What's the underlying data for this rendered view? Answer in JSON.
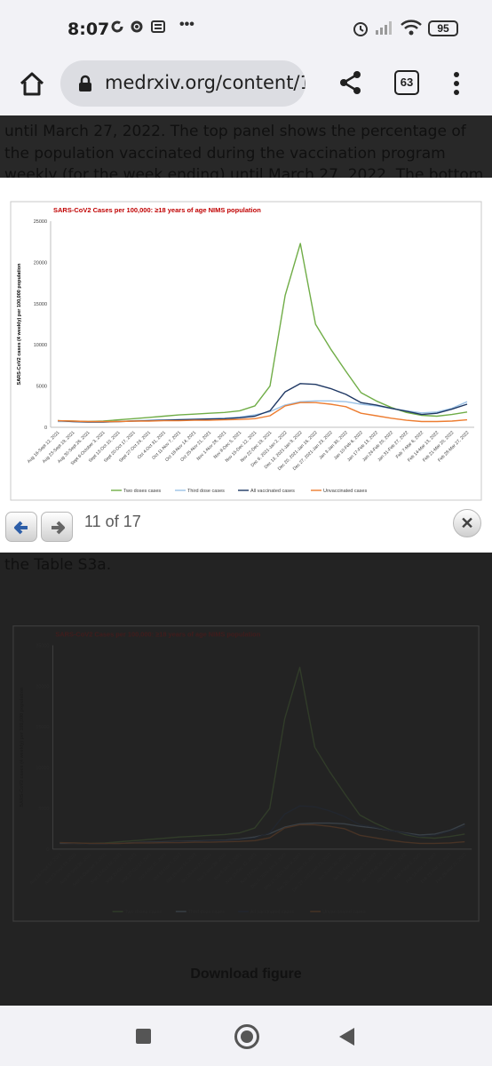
{
  "status": {
    "time": "8:07",
    "notif_icons": [
      "sync-icon",
      "gear-icon",
      "news-icon"
    ],
    "more": "•••",
    "battery": "95"
  },
  "browser": {
    "url": "medrxiv.org/content/1",
    "tab_count": "63"
  },
  "page": {
    "paragraph": "until March 27, 2022. The top panel shows the percentage of the population vaccinated during the vaccination program weekly (for the week ending) until March 27, 2022. The bottom panel shows",
    "table_ref": "the Table S3a.",
    "download_label": "Download figure"
  },
  "viewer": {
    "counter": "11 of 17"
  },
  "chart_data": {
    "type": "line",
    "title": "SARS-CoV2 Cases per 100,000: ≥18 years of age NIMS population",
    "ylabel": "SARS-CoV2 cases (4 weekly) per 100,000 population",
    "xlabel": "",
    "ylim": [
      0,
      25000
    ],
    "yticks": [
      "0",
      "5000",
      "10000",
      "15000",
      "20000",
      "25000"
    ],
    "grid": false,
    "legend_position": "bottom",
    "categories": [
      "Aug 16-Sept 12, 2021",
      "Aug 23-Sept 19, 2021",
      "Aug 30-Sept 26, 2021",
      "Sept 6-October 3, 2021",
      "Sept 13-Oct 10, 2021",
      "Sept 20-Oct 17, 2021",
      "Sept 27-Oct 24, 2021",
      "Oct 4-Oct 31, 2021",
      "Oct 11-Nov 7, 2021",
      "Oct 18-Nov 14, 2021",
      "Oct 25-Nov 21, 2021",
      "Nov 1-Nov 28, 2021",
      "Nov 8-Dec 5, 2021",
      "Nov 15-Dec 12, 2021",
      "Nov 22-Dec 19, 2021",
      "Dec 6, 2021-Jan 2, 2022",
      "Dec 13, 2021-Jan 9, 2022",
      "Dec 20, 2021-Jan 16, 2022",
      "Dec 27, 2021-Jan 23, 2022",
      "Jan 3-Jan 30, 2022",
      "Jan 10-Feb 6, 2022",
      "Jan 17-Feb 13, 2022",
      "Jan 24-Feb 20, 2022",
      "Jan 31-Feb 27, 2022",
      "Feb 7-Mar 6, 2022",
      "Feb 14-Mar 13, 2022",
      "Feb 21-Mar 20, 2022",
      "Feb 28-Mar 27, 2022"
    ],
    "series": [
      {
        "name": "Two doses cases",
        "color": "#70ad47",
        "values": [
          800,
          750,
          700,
          750,
          900,
          1050,
          1200,
          1350,
          1500,
          1600,
          1700,
          1800,
          2000,
          2600,
          5000,
          16000,
          22300,
          12500,
          9500,
          6800,
          4200,
          3200,
          2400,
          1800,
          1450,
          1350,
          1550,
          1850
        ]
      },
      {
        "name": "Third dose cases",
        "color": "#9dc3e6",
        "values": [
          700,
          700,
          650,
          650,
          700,
          800,
          850,
          900,
          950,
          1000,
          1050,
          1100,
          1250,
          1500,
          1900,
          2700,
          3100,
          3200,
          3200,
          3100,
          2800,
          2600,
          2300,
          2000,
          1750,
          1850,
          2300,
          3100
        ]
      },
      {
        "name": "All vaccinated cases",
        "color": "#1f3864",
        "values": [
          800,
          700,
          650,
          650,
          700,
          750,
          800,
          850,
          900,
          950,
          1000,
          1050,
          1150,
          1350,
          2000,
          4300,
          5300,
          5200,
          4700,
          4000,
          3000,
          2700,
          2300,
          1950,
          1550,
          1700,
          2200,
          2800
        ]
      },
      {
        "name": "Unvaccinated cases",
        "color": "#ed7d31",
        "values": [
          800,
          750,
          700,
          700,
          700,
          750,
          750,
          800,
          800,
          850,
          850,
          900,
          950,
          1050,
          1400,
          2600,
          3000,
          3000,
          2800,
          2500,
          1700,
          1400,
          1100,
          850,
          700,
          700,
          750,
          900
        ]
      }
    ]
  }
}
